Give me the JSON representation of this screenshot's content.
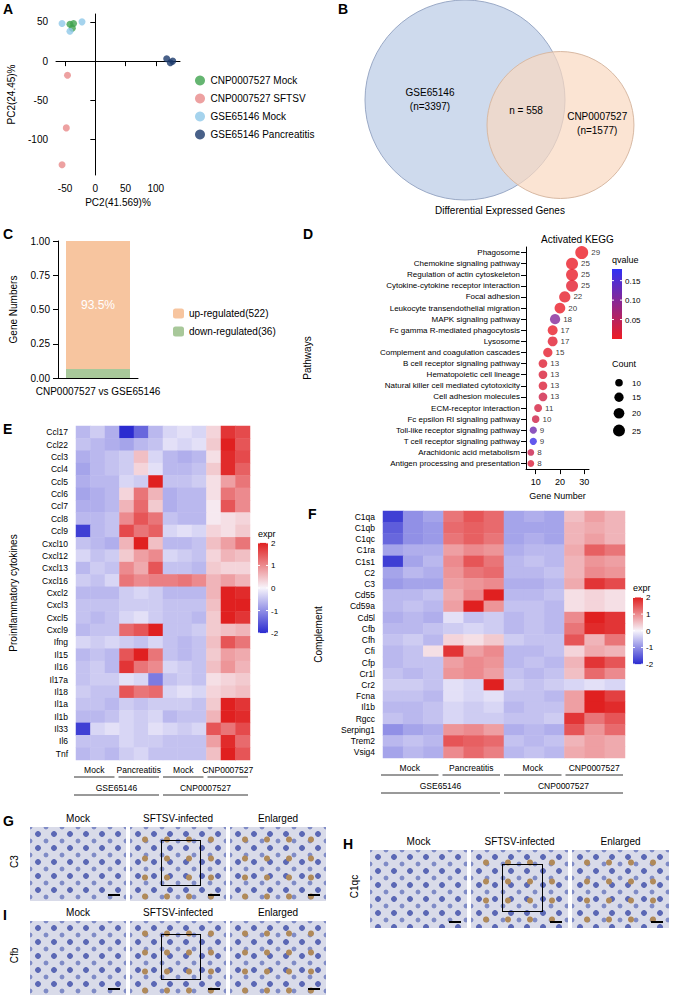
{
  "chart_data": [
    {
      "panel": "A",
      "type": "scatter",
      "marker": "circle",
      "x_label": "PC2(41.569)%",
      "y_label": "PC2(24.45)%",
      "xlim": [
        -65,
        140
      ],
      "xticks": [
        -50,
        0,
        50,
        100
      ],
      "ylim": [
        -145,
        60
      ],
      "yticks": [
        -100,
        -50,
        0,
        50
      ],
      "legend": "right",
      "series": [
        {
          "name": "CNP0007527 Mock",
          "color": "#3fa34d",
          "x": [
            -42,
            -38,
            -36
          ],
          "values": [
            47,
            42,
            48
          ]
        },
        {
          "name": "CNP0007527 SFTSV",
          "color": "#e88a8a",
          "x": [
            -46,
            -48,
            -55
          ],
          "values": [
            -18,
            -85,
            -132
          ]
        },
        {
          "name": "GSE65146 Mock",
          "color": "#8ec8e8",
          "x": [
            -55,
            -42,
            -22
          ],
          "values": [
            48,
            38,
            50
          ]
        },
        {
          "name": "GSE65146 Pancreatitis",
          "color": "#1b3a6b",
          "x": [
            118,
            124,
            128
          ],
          "values": [
            3,
            -2,
            0
          ]
        }
      ]
    },
    {
      "panel": "C",
      "type": "bar",
      "stacked": true,
      "categories": [
        "CNP0007527 vs GSE65146"
      ],
      "y_label": "Gene Numbers",
      "ylim": [
        0,
        1
      ],
      "yticks": [
        {
          "value": 0,
          "label": "0.00"
        },
        0.25,
        {
          "value": 0.5,
          "label": "0.50"
        },
        0.75,
        {
          "value": 1,
          "label": "1.00"
        }
      ],
      "legend": "right",
      "series": [
        {
          "name": "down-regulated(36)",
          "color": "#a8c89a",
          "values": [
            0.065
          ]
        },
        {
          "name": "up-regulated(522)",
          "color": "#f7c59f",
          "values": [
            0.935
          ],
          "data_labels": true,
          "value_labels": [
            "93.5%"
          ]
        }
      ]
    },
    {
      "panel": "D",
      "type": "scatter",
      "title": "Activated KEGG",
      "x_label": "Gene Number",
      "y_label": "Pathways",
      "categories": [
        "Phagosome",
        "Chemokine signaling pathway",
        "Regulation of actin cytoskeleton",
        "Cytokine-cytokine receptor interaction",
        "Focal adhesion",
        "Leukocyte transendothelial migration",
        "MAPK signaling pathway",
        "Fc gamma R-mediated phagocytosis",
        "Lysosome",
        "Complement and coagulation cascades",
        "B cell receptor signaling pathway",
        "Hematopoietic cell lineage",
        "Natural killer cell mediated cytotoxicity",
        "Cell adhesion molecules",
        "ECM-receptor interaction",
        "Fc epsilon RI signaling pathway",
        "Toll-like receptor signaling pathway",
        "T cell receptor signaling pathway",
        "Arachidonic acid metabolism",
        "Antigen processing and presentation"
      ],
      "values": [
        29,
        25,
        25,
        25,
        22,
        20,
        18,
        17,
        17,
        15,
        13,
        13,
        13,
        13,
        11,
        10,
        9,
        9,
        8,
        8
      ],
      "qvalue": [
        0.002,
        0.004,
        0.006,
        0.01,
        0.008,
        0.004,
        0.1,
        0.005,
        0.012,
        0.009,
        0.015,
        0.02,
        0.018,
        0.03,
        0.025,
        0.03,
        0.12,
        0.17,
        0.035,
        0.02
      ],
      "xlim": [
        6,
        32
      ],
      "xticks": [
        10,
        20,
        30
      ],
      "data_labels": true,
      "color_bar": {
        "title": "qvalue",
        "range": [
          0,
          0.18
        ],
        "ticks": [
          0.05,
          {
            "value": 0.1,
            "label": "0.10"
          },
          0.15
        ],
        "colors": [
          "#ee1d23",
          "#3030f5"
        ]
      },
      "size_legend": {
        "title": "Count",
        "ticks": [
          10,
          15,
          20,
          25
        ]
      }
    },
    {
      "panel": "E",
      "type": "heatmap",
      "y_label": "Proinflammatory cytokines",
      "rows": [
        "Ccl17",
        "Ccl22",
        "Ccl3",
        "Ccl4",
        "Ccl5",
        "Ccl6",
        "Ccl7",
        "Ccl8",
        "Ccl9",
        "Cxcl10",
        "Cxcl12",
        "Cxcl13",
        "Cxcl16",
        "Cxcl2",
        "Cxcl3",
        "Cxcl5",
        "Cxcl9",
        "Ifng",
        "Il15",
        "Il16",
        "Il17a",
        "Il18",
        "Il1a",
        "Il1b",
        "Il33",
        "Il6",
        "Tnf"
      ],
      "columns": [
        {
          "dataset": "GSE65146",
          "group": "Mock"
        },
        {
          "dataset": "GSE65146",
          "group": "Mock"
        },
        {
          "dataset": "GSE65146",
          "group": "Mock"
        },
        {
          "dataset": "GSE65146",
          "group": "Pancreatitis"
        },
        {
          "dataset": "GSE65146",
          "group": "Pancreatitis"
        },
        {
          "dataset": "GSE65146",
          "group": "Pancreatitis"
        },
        {
          "dataset": "CNP0007527",
          "group": "Mock"
        },
        {
          "dataset": "CNP0007527",
          "group": "Mock"
        },
        {
          "dataset": "CNP0007527",
          "group": "Mock"
        },
        {
          "dataset": "CNP0007527",
          "group": "CNP0007527"
        },
        {
          "dataset": "CNP0007527",
          "group": "CNP0007527"
        },
        {
          "dataset": "CNP0007527",
          "group": "CNP0007527"
        }
      ],
      "cells": [
        [
          -0.6,
          -0.4,
          -0.7,
          -2.0,
          -1.4,
          -0.6,
          -0.3,
          -0.2,
          -0.3,
          0.3,
          1.8,
          1.6
        ],
        [
          -0.5,
          -0.6,
          -0.7,
          -0.8,
          -0.6,
          -0.5,
          -0.2,
          -0.3,
          -0.2,
          0.4,
          2.0,
          1.5
        ],
        [
          -0.7,
          -0.6,
          -0.5,
          -0.4,
          0.5,
          -0.3,
          -0.6,
          -0.7,
          -0.6,
          0.2,
          1.9,
          1.6
        ],
        [
          -0.8,
          -0.6,
          -0.5,
          -0.4,
          0.3,
          -0.2,
          -0.6,
          -0.6,
          -0.5,
          0.4,
          1.9,
          1.4
        ],
        [
          -0.7,
          -0.6,
          -0.6,
          -0.3,
          -0.4,
          2.0,
          -0.5,
          -0.5,
          -0.4,
          0.2,
          0.8,
          1.2
        ],
        [
          -0.8,
          -0.7,
          -0.6,
          0.3,
          1.2,
          0.6,
          -0.7,
          -0.6,
          -0.6,
          0.2,
          1.2,
          1.0
        ],
        [
          -0.7,
          -0.7,
          -0.6,
          0.6,
          1.3,
          0.4,
          -0.7,
          -0.6,
          -0.6,
          0.1,
          1.5,
          1.0
        ],
        [
          -0.6,
          -0.6,
          -0.5,
          1.0,
          1.5,
          1.2,
          -0.5,
          -0.6,
          -0.6,
          0.1,
          0.2,
          0.3
        ],
        [
          -1.8,
          -0.6,
          -0.5,
          1.6,
          1.2,
          1.4,
          -0.3,
          -0.2,
          -0.3,
          0.3,
          0.2,
          0.4
        ],
        [
          -0.5,
          -0.6,
          -0.7,
          0.6,
          2.0,
          0.5,
          -0.6,
          -0.6,
          -0.5,
          0.5,
          0.8,
          1.2
        ],
        [
          -0.3,
          -0.5,
          -0.4,
          0.4,
          0.8,
          1.0,
          -0.3,
          -0.4,
          -0.5,
          0.3,
          0.6,
          0.5
        ],
        [
          -0.6,
          -0.4,
          -0.5,
          1.0,
          0.7,
          1.5,
          -0.5,
          -0.5,
          -0.6,
          0.4,
          0.3,
          0.3
        ],
        [
          -0.4,
          -0.5,
          -0.3,
          1.2,
          1.0,
          1.1,
          1.1,
          1.2,
          1.0,
          0.6,
          0.8,
          0.6
        ],
        [
          -0.6,
          -0.6,
          -0.6,
          -0.4,
          -0.3,
          -0.4,
          -0.6,
          -0.6,
          -0.6,
          0.6,
          2.0,
          1.9
        ],
        [
          -0.5,
          -0.5,
          -0.5,
          -0.4,
          -0.4,
          -0.4,
          -0.5,
          -0.5,
          -0.5,
          0.5,
          2.0,
          2.0
        ],
        [
          -0.5,
          -0.6,
          -0.5,
          -0.3,
          -0.2,
          -0.4,
          -0.5,
          -0.5,
          -0.6,
          0.4,
          2.0,
          1.8
        ],
        [
          -0.6,
          -0.5,
          -0.5,
          1.3,
          1.5,
          2.0,
          -0.5,
          -0.5,
          -0.4,
          0.4,
          0.5,
          0.6
        ],
        [
          -0.3,
          -0.4,
          -0.3,
          -0.4,
          -0.5,
          -0.3,
          -0.5,
          -0.6,
          -0.5,
          0.5,
          1.5,
          1.2
        ],
        [
          -0.6,
          -0.5,
          -0.6,
          1.5,
          2.0,
          1.2,
          -0.5,
          -0.6,
          -0.5,
          0.4,
          0.8,
          0.7
        ],
        [
          -0.5,
          -0.4,
          -0.6,
          1.8,
          1.2,
          1.0,
          -0.3,
          -0.4,
          -0.5,
          0.5,
          0.9,
          0.6
        ],
        [
          -0.5,
          -0.4,
          -0.4,
          -0.2,
          -0.3,
          -1.2,
          -0.5,
          -0.4,
          -0.5,
          0.2,
          0.3,
          0.4
        ],
        [
          -0.4,
          -0.5,
          -0.5,
          1.5,
          1.2,
          1.3,
          -0.3,
          -0.2,
          -0.3,
          0.3,
          0.4,
          0.5
        ],
        [
          -0.5,
          -0.5,
          -0.6,
          -0.4,
          -0.5,
          -0.4,
          -0.4,
          -0.4,
          -0.5,
          0.4,
          2.0,
          1.8
        ],
        [
          -0.6,
          -0.6,
          -0.5,
          -0.3,
          -0.4,
          -0.3,
          -0.6,
          -0.5,
          -0.5,
          0.6,
          2.0,
          1.9
        ],
        [
          -1.8,
          -0.3,
          -0.2,
          -0.3,
          -0.4,
          -0.2,
          -0.3,
          -0.4,
          -0.3,
          1.5,
          1.2,
          1.6
        ],
        [
          -0.5,
          -0.5,
          -0.5,
          -0.3,
          -0.4,
          -0.4,
          -0.5,
          -0.5,
          -0.5,
          0.8,
          1.9,
          1.3
        ],
        [
          -0.6,
          -0.5,
          -0.6,
          -0.4,
          -0.3,
          -0.5,
          -0.5,
          -0.5,
          -0.5,
          0.5,
          2.0,
          1.5
        ]
      ],
      "color_bar": {
        "title": "expr",
        "range": [
          -2,
          2
        ],
        "ticks": [
          -2,
          -1,
          0,
          1,
          2
        ],
        "colors": [
          "#2b2bd0",
          "#f7f4fb",
          "#e02020"
        ]
      }
    },
    {
      "panel": "F",
      "type": "heatmap",
      "y_label": "Complement",
      "rows": [
        "C1qa",
        "C1qb",
        "C1qc",
        "C1ra",
        "C1s1",
        "C2",
        "C3",
        "Cd55",
        "Cd59a",
        "Cd5l",
        "Cfb",
        "Cfh",
        "Cfi",
        "Cfp",
        "Cr1l",
        "Cr2",
        "Fcna",
        "Il1b",
        "Rgcc",
        "Serping1",
        "Trem2",
        "Vsig4"
      ],
      "columns": [
        {
          "dataset": "GSE65146",
          "group": "Mock"
        },
        {
          "dataset": "GSE65146",
          "group": "Mock"
        },
        {
          "dataset": "GSE65146",
          "group": "Mock"
        },
        {
          "dataset": "GSE65146",
          "group": "Pancreatitis"
        },
        {
          "dataset": "GSE65146",
          "group": "Pancreatitis"
        },
        {
          "dataset": "GSE65146",
          "group": "Pancreatitis"
        },
        {
          "dataset": "CNP0007527",
          "group": "Mock"
        },
        {
          "dataset": "CNP0007527",
          "group": "Mock"
        },
        {
          "dataset": "CNP0007527",
          "group": "Mock"
        },
        {
          "dataset": "CNP0007527",
          "group": "CNP0007527"
        },
        {
          "dataset": "CNP0007527",
          "group": "CNP0007527"
        },
        {
          "dataset": "CNP0007527",
          "group": "CNP0007527"
        }
      ],
      "cells": [
        [
          -1.8,
          -1.0,
          -0.8,
          1.2,
          1.5,
          1.3,
          -0.8,
          -0.7,
          -0.8,
          0.5,
          0.8,
          0.6
        ],
        [
          -1.5,
          -1.0,
          -0.9,
          1.3,
          1.4,
          1.3,
          -0.8,
          -0.8,
          -0.8,
          0.6,
          0.7,
          0.6
        ],
        [
          -1.4,
          -1.0,
          -0.9,
          1.2,
          1.4,
          1.2,
          -0.8,
          -0.7,
          -0.8,
          0.6,
          0.8,
          0.6
        ],
        [
          -0.8,
          -0.7,
          -0.7,
          0.8,
          1.0,
          0.9,
          -0.7,
          -0.6,
          -0.6,
          0.7,
          1.4,
          1.2
        ],
        [
          -1.8,
          -0.8,
          -0.6,
          1.0,
          1.5,
          1.2,
          -0.6,
          -0.5,
          -0.6,
          0.6,
          0.9,
          0.8
        ],
        [
          -0.8,
          -0.6,
          -0.7,
          0.9,
          1.2,
          1.3,
          -0.6,
          -0.6,
          -0.5,
          0.6,
          1.0,
          0.9
        ],
        [
          -0.9,
          -0.8,
          -0.8,
          0.8,
          0.9,
          1.0,
          -0.7,
          -0.7,
          -0.6,
          0.7,
          1.8,
          1.6
        ],
        [
          -0.6,
          -0.6,
          -0.5,
          0.7,
          1.0,
          2.0,
          -0.6,
          -0.6,
          -0.5,
          0.2,
          0.3,
          0.2
        ],
        [
          -0.6,
          -0.5,
          -0.6,
          0.8,
          2.0,
          0.9,
          -0.5,
          -0.5,
          -0.6,
          0.2,
          0.3,
          0.2
        ],
        [
          -0.7,
          -0.6,
          -0.7,
          -0.2,
          -0.5,
          -0.4,
          -0.6,
          -0.5,
          -0.6,
          1.0,
          2.0,
          1.8
        ],
        [
          -0.6,
          -0.6,
          -0.5,
          -0.4,
          -0.3,
          -0.4,
          -0.6,
          -0.5,
          -0.6,
          1.2,
          1.9,
          1.8
        ],
        [
          -0.5,
          -0.4,
          -0.6,
          0.3,
          0.2,
          0.4,
          -0.4,
          -0.5,
          -0.5,
          1.5,
          0.6,
          1.2
        ],
        [
          -0.6,
          -0.5,
          0.2,
          1.8,
          0.8,
          1.0,
          -0.6,
          -0.6,
          -0.5,
          0.3,
          0.7,
          0.6
        ],
        [
          -0.6,
          -0.5,
          -0.5,
          0.8,
          1.0,
          0.9,
          -0.6,
          -0.5,
          -0.6,
          0.6,
          1.8,
          1.5
        ],
        [
          -0.5,
          -0.6,
          -0.5,
          0.9,
          1.0,
          0.8,
          -0.5,
          -0.6,
          -0.5,
          0.5,
          1.3,
          1.0
        ],
        [
          -0.4,
          -0.4,
          -0.5,
          -0.2,
          -0.3,
          2.0,
          -0.4,
          -0.5,
          -0.4,
          -0.3,
          -0.2,
          -0.3
        ],
        [
          -0.5,
          -0.5,
          -0.6,
          -0.2,
          -0.3,
          -0.2,
          -0.5,
          -0.5,
          -0.6,
          0.8,
          2.0,
          1.7
        ],
        [
          -0.6,
          -0.6,
          -0.5,
          -0.3,
          -0.4,
          -0.3,
          -0.6,
          -0.5,
          -0.5,
          0.8,
          2.0,
          1.9
        ],
        [
          -0.5,
          -0.6,
          -0.5,
          -0.3,
          -0.4,
          -0.4,
          -0.5,
          -0.5,
          -0.4,
          1.8,
          1.2,
          1.5
        ],
        [
          -1.0,
          -0.8,
          -0.7,
          0.9,
          1.0,
          0.8,
          -0.7,
          -0.6,
          -0.7,
          1.5,
          0.9,
          1.3
        ],
        [
          -0.6,
          -0.5,
          -0.6,
          1.5,
          1.4,
          1.3,
          -0.5,
          -0.6,
          -0.5,
          0.6,
          0.8,
          0.7
        ],
        [
          -0.8,
          -0.6,
          -0.7,
          1.0,
          1.3,
          1.1,
          -0.6,
          -0.5,
          -0.6,
          0.7,
          0.8,
          0.7
        ]
      ],
      "color_bar": {
        "title": "expr",
        "range": [
          -2,
          2
        ],
        "ticks": [
          -2,
          -1,
          0,
          1,
          2
        ],
        "colors": [
          "#2b2bd0",
          "#f7f4fb",
          "#e02020"
        ]
      }
    }
  ],
  "venn": {
    "panel": "B",
    "title": "Differential Expressed Genes",
    "sets": [
      {
        "name": "GSE65146",
        "label": "(n=3397)",
        "count": 3397,
        "color": "#c5d3ea"
      },
      {
        "name": "CNP0007527",
        "label": "(n=1577)",
        "count": 1577,
        "color": "#f9d9c0"
      }
    ],
    "overlap": {
      "label": "n = 558",
      "count": 558
    }
  },
  "images": [
    {
      "panel": "G",
      "stain": "C3",
      "columns": [
        "Mock",
        "SFTSV-infected",
        "Enlarged"
      ]
    },
    {
      "panel": "H",
      "stain": "C1qc",
      "columns": [
        "Mock",
        "SFTSV-infected",
        "Enlarged"
      ]
    },
    {
      "panel": "I",
      "stain": "Cfb",
      "columns": [
        "Mock",
        "SFTSV-infected",
        "Enlarged"
      ]
    }
  ]
}
